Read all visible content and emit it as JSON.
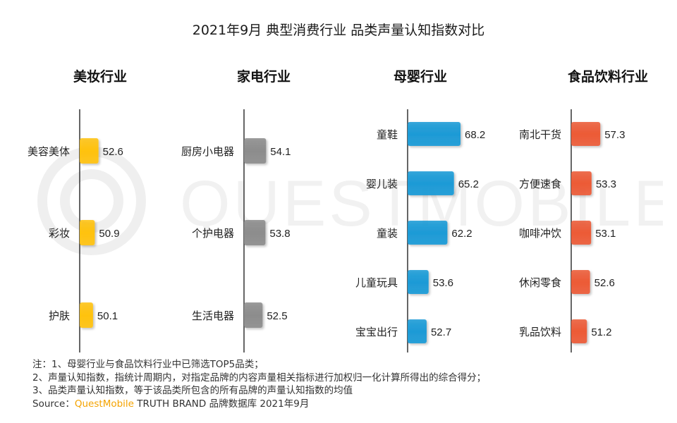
{
  "title": "2021年9月 典型消费行业 品类声量认知指数对比",
  "colors": {
    "美妆": "#ffc20e",
    "家电": "#8c8c8c",
    "母婴": "#1a9ad6",
    "食品": "#ec5a36"
  },
  "chart_data": [
    {
      "type": "bar",
      "title": "美妆行业",
      "categories": [
        "美容美体",
        "彩妆",
        "护肤"
      ],
      "values": [
        52.6,
        50.9,
        50.1
      ]
    },
    {
      "type": "bar",
      "title": "家电行业",
      "categories": [
        "厨房小电器",
        "个护电器",
        "生活电器"
      ],
      "values": [
        54.1,
        53.8,
        52.5
      ]
    },
    {
      "type": "bar",
      "title": "母婴行业",
      "categories": [
        "童鞋",
        "婴儿装",
        "童装",
        "儿童玩具",
        "宝宝出行"
      ],
      "values": [
        68.2,
        65.2,
        62.2,
        53.6,
        52.7
      ]
    },
    {
      "type": "bar",
      "title": "食品饮料行业",
      "categories": [
        "南北干货",
        "方便速食",
        "咖啡冲饮",
        "休闲零食",
        "乳品饮料"
      ],
      "values": [
        57.3,
        53.3,
        53.1,
        52.6,
        51.2
      ]
    }
  ],
  "notes": [
    "注：1、母婴行业与食品饮料行业中已筛选TOP5品类；",
    "2、声量认知指数，指统计周期内，对指定品牌的内容声量相关指标进行加权归一化计算所得出的综合得分；",
    "3、品类声量认知指数，等于该品类所包含的所有品牌的声量认知指数的均值"
  ],
  "source": {
    "prefix": "Source：",
    "brand": "QuestMobile",
    "suffix": " TRUTH BRAND 品牌数据库 2021年9月"
  },
  "watermark": "QUESTMOBILE"
}
